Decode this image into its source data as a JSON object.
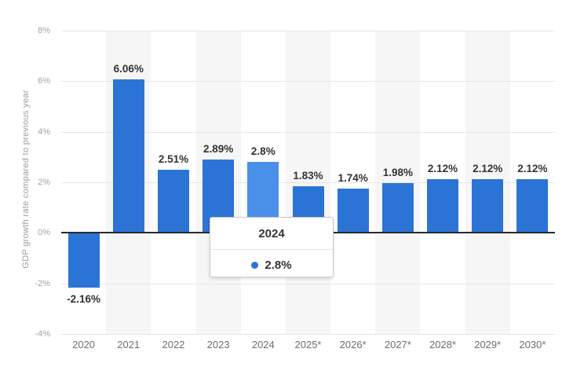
{
  "chart_data": {
    "type": "bar",
    "title": "",
    "xlabel": "",
    "ylabel": "GDP growth rate compared to previous year",
    "categories": [
      "2020",
      "2021",
      "2022",
      "2023",
      "2024",
      "2025*",
      "2026*",
      "2027*",
      "2028*",
      "2029*",
      "2030*"
    ],
    "values": [
      -2.16,
      6.06,
      2.51,
      2.89,
      2.8,
      1.83,
      1.74,
      1.98,
      2.12,
      2.12,
      2.12
    ],
    "value_labels": [
      "-2.16%",
      "6.06%",
      "2.51%",
      "2.89%",
      "2.8%",
      "1.83%",
      "1.74%",
      "1.98%",
      "2.12%",
      "2.12%",
      "2.12%"
    ],
    "ytick_values": [
      8,
      6,
      4,
      2,
      0,
      -2,
      -4
    ],
    "ytick_labels": [
      "8%",
      "6%",
      "4%",
      "2%",
      "0%",
      "-2%",
      "-4%"
    ],
    "ylim": [
      -4,
      8
    ],
    "grid": true,
    "legend": "none",
    "highlighted_index": 4,
    "colors": {
      "bar": "#2b74d6",
      "bar_highlight": "#4a8fe8"
    }
  },
  "tooltip": {
    "title": "2024",
    "value": "2.8%",
    "marker_color": "#2b74d6"
  }
}
